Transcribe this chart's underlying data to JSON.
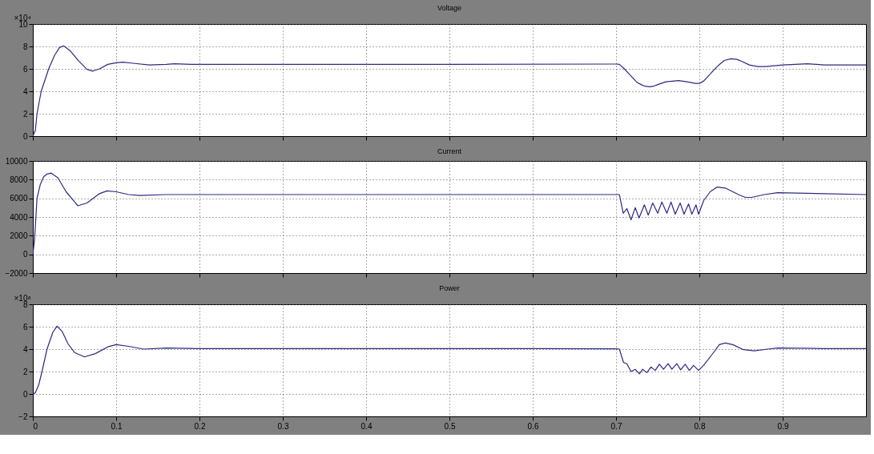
{
  "chart_data": [
    {
      "type": "line",
      "title": "Voltage",
      "color": "#2a2a80",
      "grid": true,
      "tick_labels": "y",
      "ylabel": "×10⁴",
      "xlim": [
        0,
        1
      ],
      "xticks": [
        0,
        0.1,
        0.2,
        0.3,
        0.4,
        0.5,
        0.6,
        0.7,
        0.8,
        0.9
      ],
      "ylim": [
        0,
        10
      ],
      "yticks": [
        0,
        2,
        4,
        6,
        8,
        10
      ],
      "x": [
        0,
        0.003,
        0.005,
        0.01,
        0.019,
        0.026,
        0.032,
        0.037,
        0.045,
        0.055,
        0.065,
        0.072,
        0.08,
        0.09,
        0.1,
        0.108,
        0.12,
        0.14,
        0.16,
        0.17,
        0.19,
        0.3,
        0.5,
        0.7,
        0.704,
        0.71,
        0.715,
        0.72,
        0.725,
        0.73,
        0.735,
        0.74,
        0.745,
        0.75,
        0.76,
        0.775,
        0.785,
        0.795,
        0.8,
        0.805,
        0.81,
        0.815,
        0.82,
        0.825,
        0.83,
        0.838,
        0.845,
        0.85,
        0.86,
        0.87,
        0.88,
        0.9,
        0.93,
        0.95,
        1.0
      ],
      "values": [
        0,
        0.5,
        2,
        4,
        6,
        7.2,
        7.9,
        8.05,
        7.6,
        6.7,
        5.95,
        5.8,
        6.0,
        6.4,
        6.55,
        6.6,
        6.5,
        6.35,
        6.4,
        6.45,
        6.4,
        6.4,
        6.4,
        6.43,
        6.4,
        6.0,
        5.6,
        5.2,
        4.8,
        4.6,
        4.45,
        4.4,
        4.45,
        4.6,
        4.85,
        4.95,
        4.85,
        4.7,
        4.7,
        4.9,
        5.3,
        5.7,
        6.1,
        6.45,
        6.75,
        6.9,
        6.85,
        6.7,
        6.35,
        6.2,
        6.2,
        6.35,
        6.45,
        6.35,
        6.35
      ]
    },
    {
      "type": "line",
      "title": "Current",
      "color": "#2a2a80",
      "grid": true,
      "tick_labels": "y",
      "xlim": [
        0,
        1
      ],
      "xticks": [
        0,
        0.1,
        0.2,
        0.3,
        0.4,
        0.5,
        0.6,
        0.7,
        0.8,
        0.9
      ],
      "ylim": [
        -2000,
        10000
      ],
      "yticks": [
        -2000,
        0,
        2000,
        4000,
        6000,
        8000,
        10000
      ],
      "x": [
        0,
        0.002,
        0.005,
        0.009,
        0.013,
        0.017,
        0.022,
        0.03,
        0.04,
        0.054,
        0.065,
        0.08,
        0.089,
        0.1,
        0.115,
        0.128,
        0.16,
        0.2,
        0.4,
        0.6,
        0.7,
        0.704,
        0.7086,
        0.713,
        0.718,
        0.723,
        0.7276,
        0.734,
        0.7387,
        0.744,
        0.75,
        0.755,
        0.761,
        0.766,
        0.771,
        0.777,
        0.7816,
        0.787,
        0.791,
        0.796,
        0.799,
        0.8054,
        0.813,
        0.821,
        0.831,
        0.847,
        0.855,
        0.863,
        0.878,
        0.894,
        0.95,
        1.0
      ],
      "values": [
        0,
        1500,
        6000,
        7500,
        8300,
        8600,
        8700,
        8200,
        6700,
        5200,
        5500,
        6500,
        6800,
        6700,
        6400,
        6300,
        6400,
        6400,
        6400,
        6400,
        6400,
        6400,
        4400,
        4900,
        3700,
        5000,
        3900,
        5300,
        4200,
        5500,
        4400,
        5600,
        4400,
        5600,
        4300,
        5500,
        4300,
        5400,
        4300,
        5300,
        4300,
        5800,
        6700,
        7200,
        7100,
        6400,
        6100,
        6100,
        6400,
        6600,
        6500,
        6400
      ]
    },
    {
      "type": "line",
      "title": "Power",
      "color": "#2a2a80",
      "grid": true,
      "ylabel": "×10⁸",
      "xlim": [
        0,
        1
      ],
      "xticks": [
        0,
        0.1,
        0.2,
        0.3,
        0.4,
        0.5,
        0.6,
        0.7,
        0.8,
        0.9
      ],
      "ylim": [
        -2,
        8
      ],
      "yticks": [
        -2,
        0,
        2,
        4,
        6,
        8
      ],
      "x": [
        0,
        0.003,
        0.007,
        0.011,
        0.017,
        0.024,
        0.029,
        0.035,
        0.042,
        0.05,
        0.062,
        0.075,
        0.09,
        0.1,
        0.115,
        0.133,
        0.16,
        0.2,
        0.4,
        0.6,
        0.7,
        0.704,
        0.709,
        0.713,
        0.718,
        0.723,
        0.728,
        0.732,
        0.737,
        0.742,
        0.747,
        0.752,
        0.757,
        0.7625,
        0.767,
        0.773,
        0.7775,
        0.783,
        0.788,
        0.793,
        0.799,
        0.805,
        0.815,
        0.824,
        0.831,
        0.84,
        0.853,
        0.866,
        0.882,
        0.894,
        0.95,
        1.0
      ],
      "values": [
        0,
        0.1,
        0.8,
        2,
        4,
        5.5,
        6.05,
        5.6,
        4.5,
        3.7,
        3.3,
        3.6,
        4.2,
        4.4,
        4.25,
        4.0,
        4.1,
        4.05,
        4.05,
        4.05,
        4.02,
        4.0,
        2.8,
        2.7,
        2.0,
        2.2,
        1.8,
        2.2,
        1.9,
        2.4,
        2.1,
        2.65,
        2.2,
        2.7,
        2.2,
        2.7,
        2.15,
        2.65,
        2.1,
        2.55,
        2.1,
        2.55,
        3.5,
        4.4,
        4.55,
        4.4,
        3.95,
        3.85,
        4.0,
        4.1,
        4.05,
        4.05
      ]
    }
  ]
}
